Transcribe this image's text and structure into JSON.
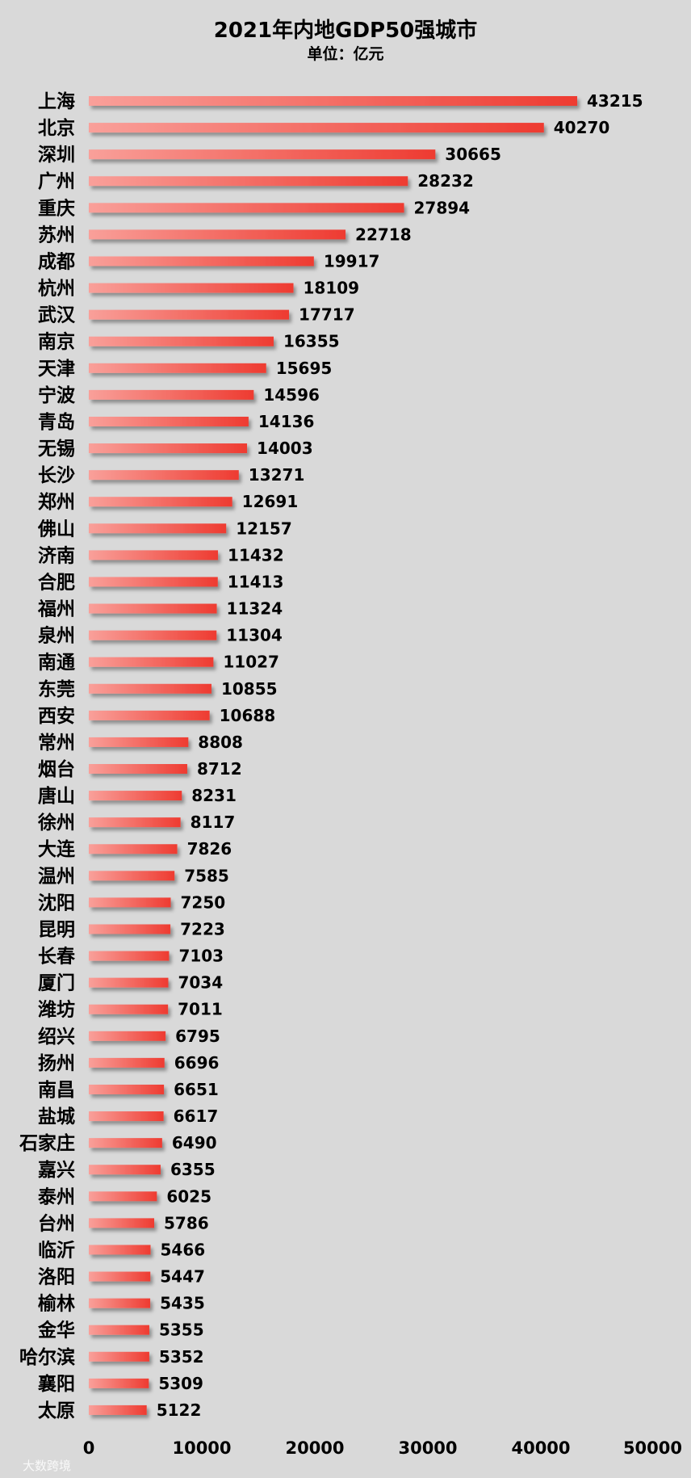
{
  "watermark": "大数跨境",
  "chart_data": {
    "type": "bar",
    "orientation": "horizontal",
    "title": "2021年内地GDP50强城市",
    "subtitle": "单位：亿元",
    "xlabel": "",
    "ylabel": "",
    "xlim": [
      0,
      50000
    ],
    "xticks": [
      0,
      10000,
      20000,
      30000,
      40000,
      50000
    ],
    "grid": false,
    "bar_color": "#f0463c",
    "categories": [
      "上海",
      "北京",
      "深圳",
      "广州",
      "重庆",
      "苏州",
      "成都",
      "杭州",
      "武汉",
      "南京",
      "天津",
      "宁波",
      "青岛",
      "无锡",
      "长沙",
      "郑州",
      "佛山",
      "济南",
      "合肥",
      "福州",
      "泉州",
      "南通",
      "东莞",
      "西安",
      "常州",
      "烟台",
      "唐山",
      "徐州",
      "大连",
      "温州",
      "沈阳",
      "昆明",
      "长春",
      "厦门",
      "潍坊",
      "绍兴",
      "扬州",
      "南昌",
      "盐城",
      "石家庄",
      "嘉兴",
      "泰州",
      "台州",
      "临沂",
      "洛阳",
      "榆林",
      "金华",
      "哈尔滨",
      "襄阳",
      "太原"
    ],
    "values": [
      43215,
      40270,
      30665,
      28232,
      27894,
      22718,
      19917,
      18109,
      17717,
      16355,
      15695,
      14596,
      14136,
      14003,
      13271,
      12691,
      12157,
      11432,
      11413,
      11324,
      11304,
      11027,
      10855,
      10688,
      8808,
      8712,
      8231,
      8117,
      7826,
      7585,
      7250,
      7223,
      7103,
      7034,
      7011,
      6795,
      6696,
      6651,
      6617,
      6490,
      6355,
      6025,
      5786,
      5466,
      5447,
      5435,
      5355,
      5352,
      5309,
      5122
    ]
  }
}
